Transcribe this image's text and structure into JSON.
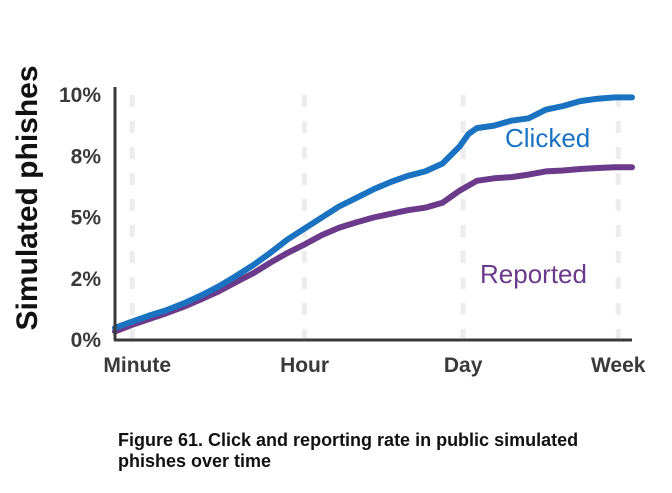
{
  "chart_data": {
    "type": "line",
    "title": "",
    "caption": "Figure 61. Click and reporting rate in public simulated phishes over time",
    "xlabel": "",
    "ylabel": "Simulated phishes",
    "x_ticks": [
      "Minute",
      "Hour",
      "Day",
      "Week"
    ],
    "y_ticks": [
      "0%",
      "2%",
      "5%",
      "8%",
      "10%"
    ],
    "ylim": [
      0,
      10
    ],
    "x_positions": [
      0,
      0.1,
      0.2,
      0.3,
      0.4,
      0.5,
      0.6,
      0.7,
      0.8,
      0.9,
      1.0,
      1.1,
      1.2,
      1.3,
      1.4,
      1.5,
      1.6,
      1.7,
      1.8,
      1.9,
      2.0,
      2.05,
      2.1,
      2.2,
      2.3,
      2.4,
      2.5,
      2.6,
      2.7,
      2.8,
      2.9,
      3.0
    ],
    "series": [
      {
        "name": "Clicked",
        "color": "#1a73c1",
        "values": [
          0.5,
          0.75,
          1.0,
          1.22,
          1.5,
          1.82,
          2.18,
          2.6,
          3.05,
          3.55,
          4.1,
          4.55,
          5.0,
          5.45,
          5.8,
          6.15,
          6.45,
          6.7,
          6.88,
          7.2,
          7.9,
          8.4,
          8.65,
          8.75,
          8.95,
          9.05,
          9.4,
          9.55,
          9.75,
          9.85,
          9.9,
          9.9
        ]
      },
      {
        "name": "Reported",
        "color": "#6b3a8a",
        "values": [
          0.35,
          0.62,
          0.86,
          1.1,
          1.36,
          1.66,
          1.98,
          2.35,
          2.72,
          3.15,
          3.55,
          3.9,
          4.28,
          4.58,
          4.8,
          5.0,
          5.15,
          5.3,
          5.4,
          5.6,
          6.1,
          6.3,
          6.5,
          6.6,
          6.65,
          6.75,
          6.88,
          6.92,
          6.98,
          7.02,
          7.05,
          7.05
        ]
      }
    ],
    "grid": "dashed vertical at x ticks",
    "legend": "inline labels"
  }
}
